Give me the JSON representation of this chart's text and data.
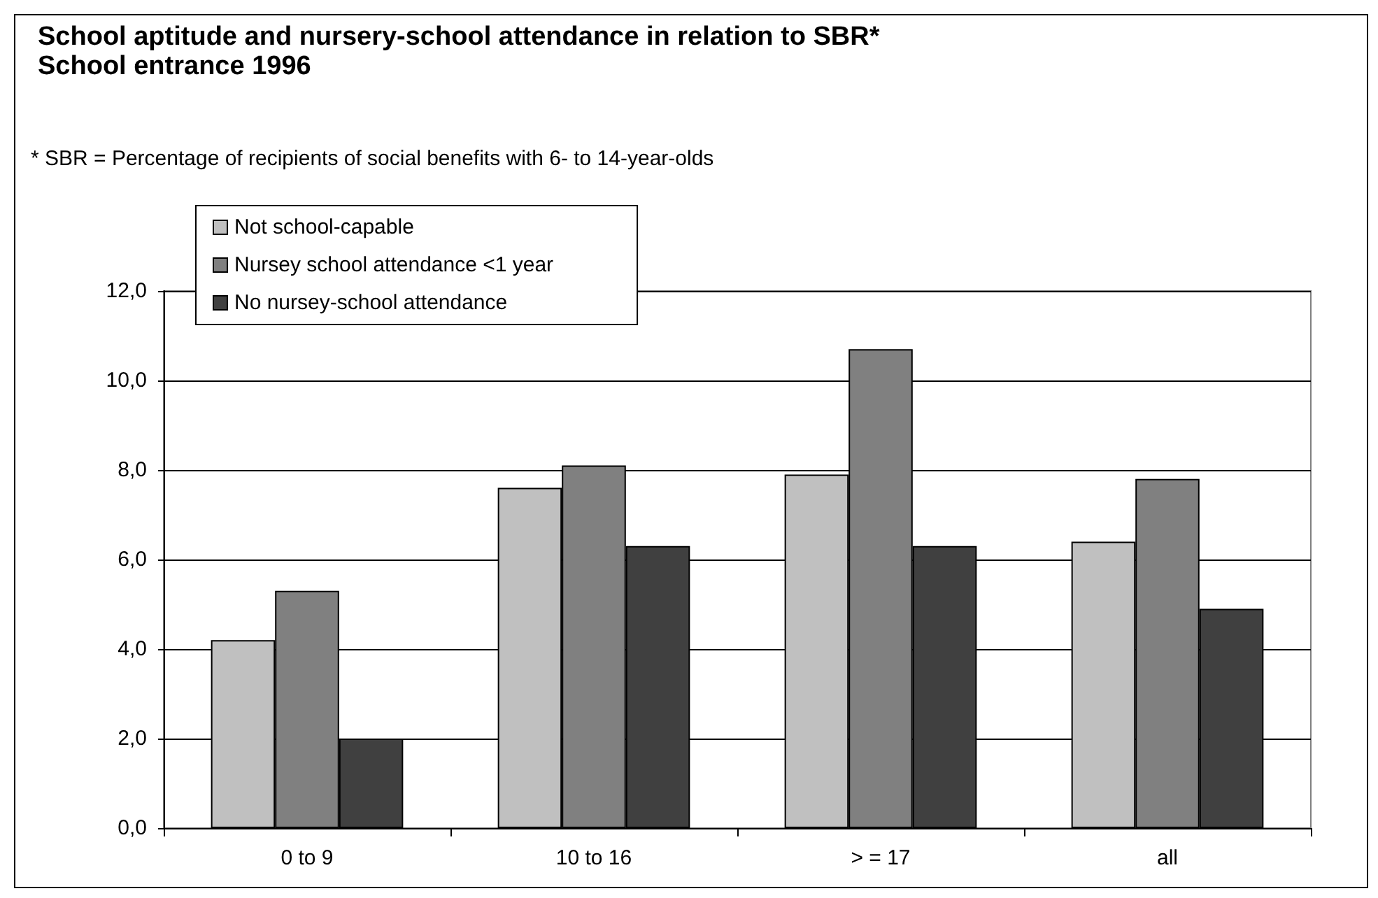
{
  "chart_data": {
    "type": "bar",
    "title": "School aptitude and nursery-school attendance in relation to SBR*",
    "subtitle": "School entrance 1996",
    "annotations": [
      "* SBR = Percentage of recipients of social benefits with 6- to 14-year-olds"
    ],
    "categories": [
      "0 to 9",
      "10 to 16",
      "> = 17",
      "all"
    ],
    "series": [
      {
        "name": "Not school-capable",
        "color": "#c0c0c0",
        "values": [
          4.2,
          7.6,
          7.9,
          6.4
        ]
      },
      {
        "name": "Nursey school attendance <1 year",
        "color": "#808080",
        "values": [
          5.3,
          8.1,
          10.7,
          7.8
        ]
      },
      {
        "name": "No nursey-school attendance",
        "color": "#404040",
        "values": [
          2.0,
          6.3,
          6.3,
          4.9
        ]
      }
    ],
    "ylim": [
      0,
      12
    ],
    "yticks": [
      {
        "value": 0,
        "label": "0,0"
      },
      {
        "value": 2,
        "label": "2,0"
      },
      {
        "value": 4,
        "label": "4,0"
      },
      {
        "value": 6,
        "label": "6,0"
      },
      {
        "value": 8,
        "label": "8,0"
      },
      {
        "value": 10,
        "label": "10,0"
      },
      {
        "value": 12,
        "label": "12,0"
      }
    ],
    "grid": "y",
    "legend": "top left"
  }
}
